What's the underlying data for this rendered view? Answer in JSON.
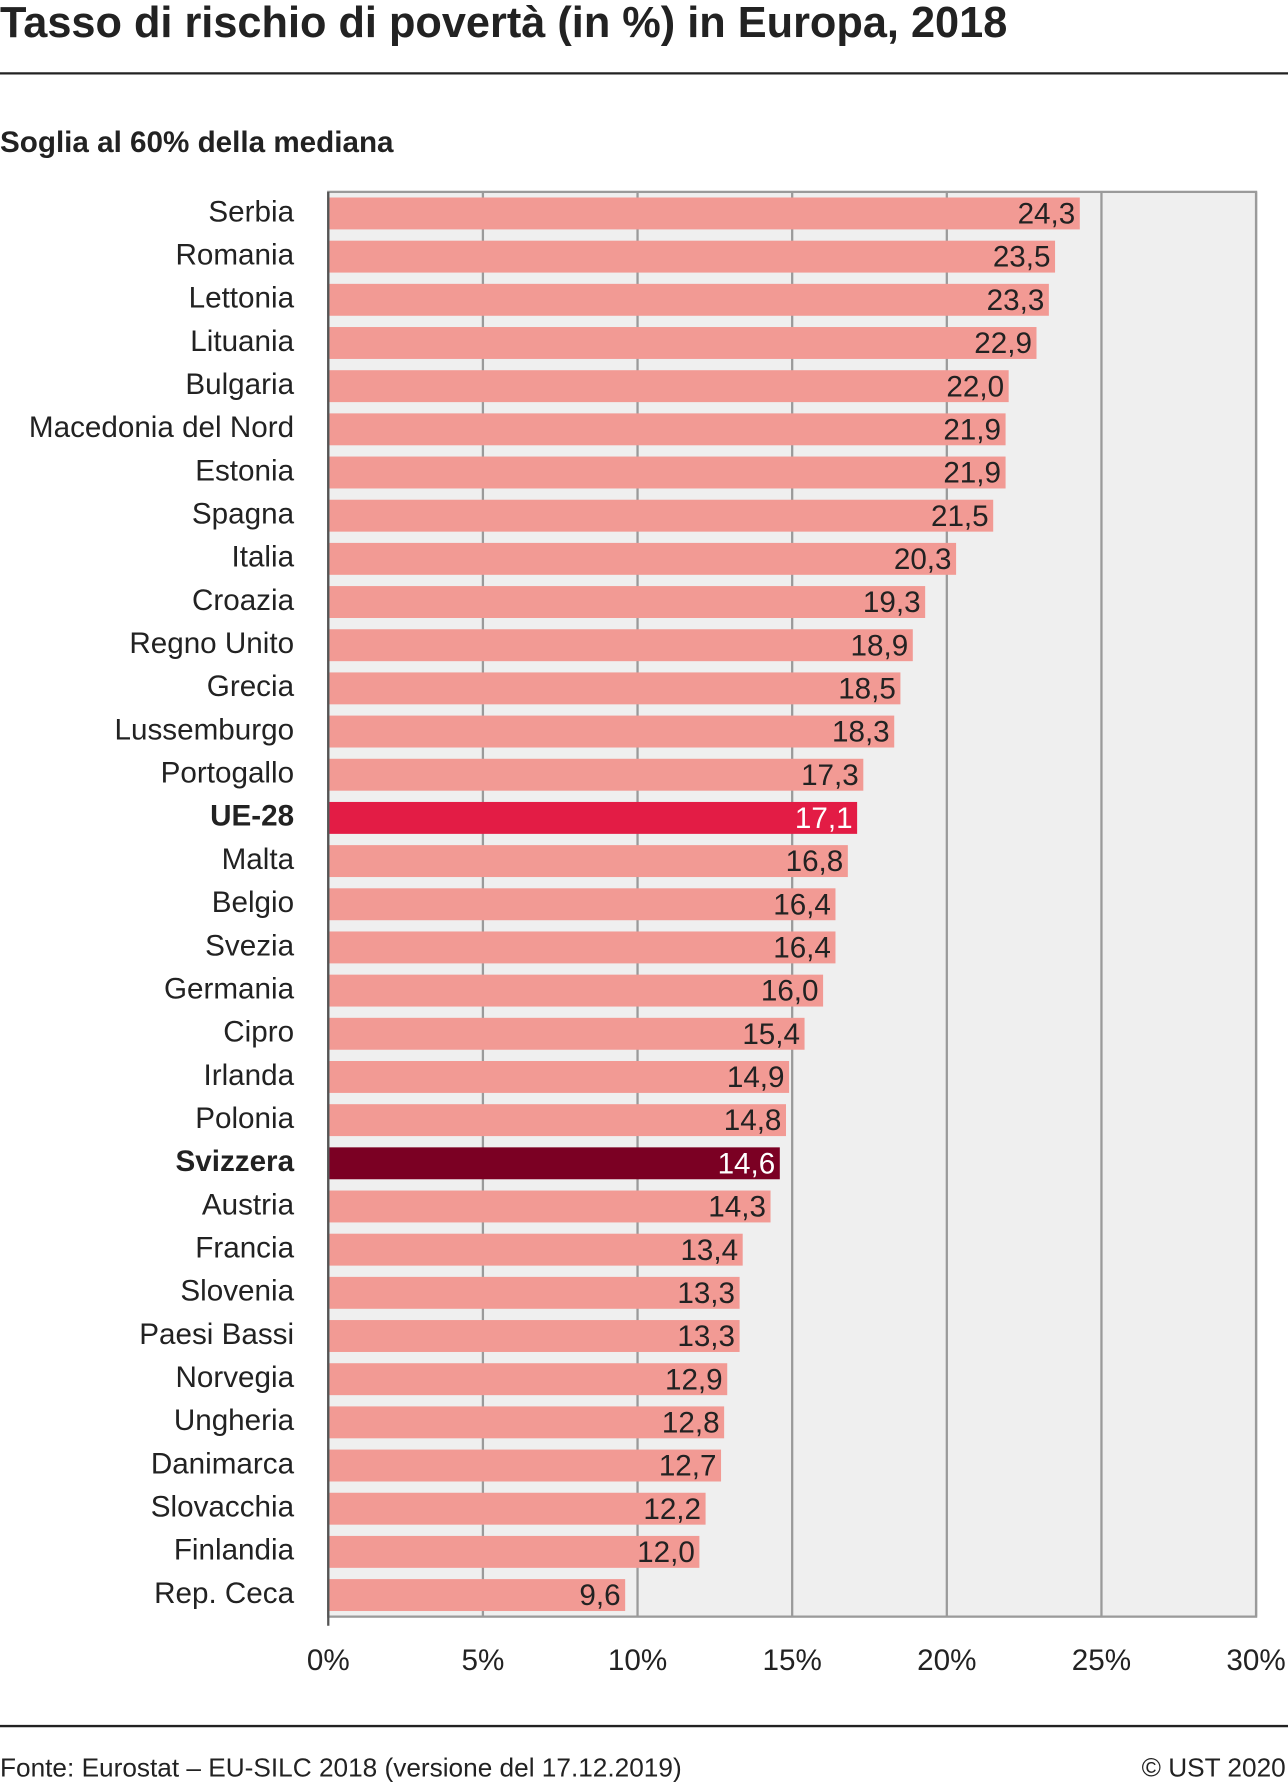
{
  "chart_data": {
    "type": "bar",
    "orientation": "horizontal",
    "title": "Tasso di rischio di povertà (in %) in Europa, 2018",
    "subtitle": "Soglia al 60% della mediana",
    "source": "Fonte: Eurostat – EU-SILC 2018 (versione del 17.12.2019)",
    "copyright": "© UST 2020",
    "categories": [
      "Serbia",
      "Romania",
      "Lettonia",
      "Lituania",
      "Bulgaria",
      "Macedonia del Nord",
      "Estonia",
      "Spagna",
      "Italia",
      "Croazia",
      "Regno Unito",
      "Grecia",
      "Lussemburgo",
      "Portogallo",
      "UE-28",
      "Malta",
      "Belgio",
      "Svezia",
      "Germania",
      "Cipro",
      "Irlanda",
      "Polonia",
      "Svizzera",
      "Austria",
      "Francia",
      "Slovenia",
      "Paesi Bassi",
      "Norvegia",
      "Ungheria",
      "Danimarca",
      "Slovacchia",
      "Finlandia",
      "Rep. Ceca"
    ],
    "values": [
      24.3,
      23.5,
      23.3,
      22.9,
      22.0,
      21.9,
      21.9,
      21.5,
      20.3,
      19.3,
      18.9,
      18.5,
      18.3,
      17.3,
      17.1,
      16.8,
      16.4,
      16.4,
      16.0,
      15.4,
      14.9,
      14.8,
      14.6,
      14.3,
      13.4,
      13.3,
      13.3,
      12.9,
      12.8,
      12.7,
      12.2,
      12.0,
      9.6
    ],
    "value_labels": [
      "24,3",
      "23,5",
      "23,3",
      "22,9",
      "22,0",
      "21,9",
      "21,9",
      "21,5",
      "20,3",
      "19,3",
      "18,9",
      "18,5",
      "18,3",
      "17,3",
      "17,1",
      "16,8",
      "16,4",
      "16,4",
      "16,0",
      "15,4",
      "14,9",
      "14,8",
      "14,6",
      "14,3",
      "13,4",
      "13,3",
      "13,3",
      "12,9",
      "12,8",
      "12,7",
      "12,2",
      "12,0",
      "9,6"
    ],
    "color": "#f29a94",
    "colors": [
      "#f29a94",
      "#f29a94",
      "#f29a94",
      "#f29a94",
      "#f29a94",
      "#f29a94",
      "#f29a94",
      "#f29a94",
      "#f29a94",
      "#f29a94",
      "#f29a94",
      "#f29a94",
      "#f29a94",
      "#f29a94",
      "#e31c45",
      "#f29a94",
      "#f29a94",
      "#f29a94",
      "#f29a94",
      "#f29a94",
      "#f29a94",
      "#f29a94",
      "#7b0023",
      "#f29a94",
      "#f29a94",
      "#f29a94",
      "#f29a94",
      "#f29a94",
      "#f29a94",
      "#f29a94",
      "#f29a94",
      "#f29a94",
      "#f29a94"
    ],
    "xlim": [
      0,
      30
    ],
    "xticks": [
      {
        "value": 0,
        "label": "0%"
      },
      {
        "value": 5,
        "label": "5%"
      },
      {
        "value": 10,
        "label": "10%"
      },
      {
        "value": 15,
        "label": "15%"
      },
      {
        "value": 20,
        "label": "20%"
      },
      {
        "value": 25,
        "label": "25%"
      },
      {
        "value": 30,
        "label": "30%"
      }
    ],
    "grid": true
  }
}
